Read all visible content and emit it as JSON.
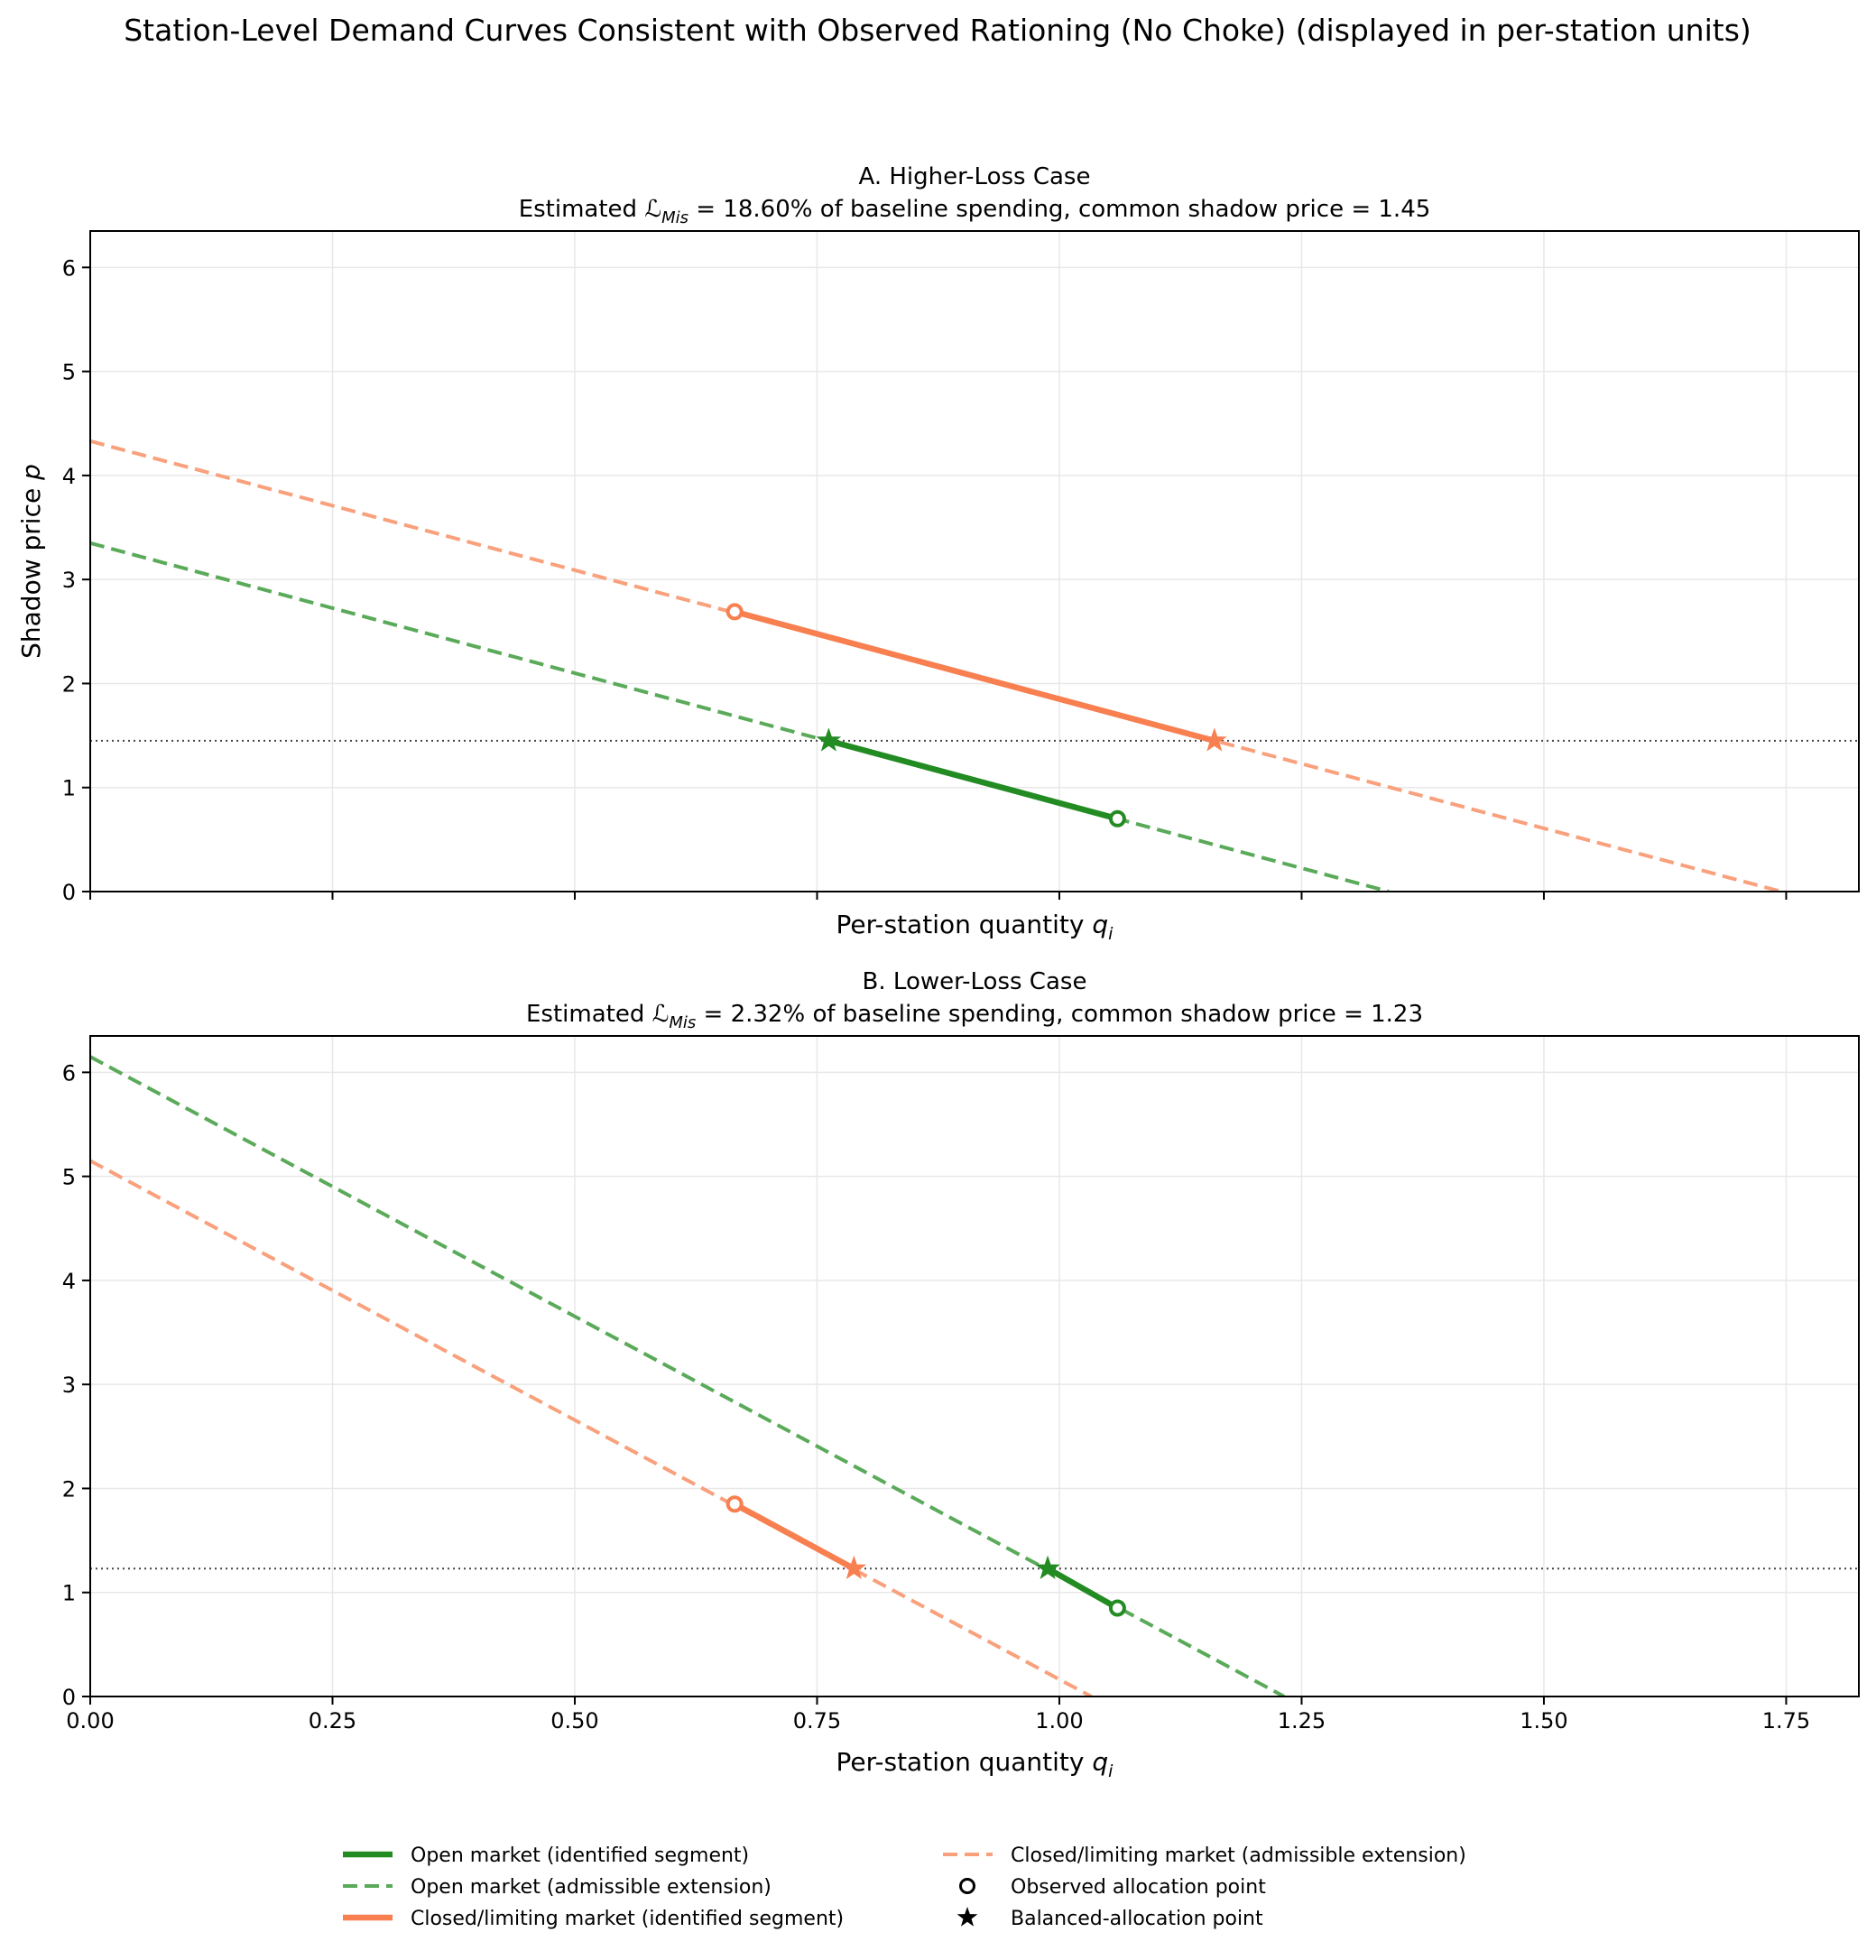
{
  "chart_data": {
    "suptitle": "Station-Level Demand Curves Consistent with Observed Rationing (No Choke) (displayed in per-station units)",
    "panels": [
      {
        "id": "A",
        "title": "A. Higher-Loss Case",
        "subtitle_prefix": "Estimated ",
        "subtitle_symbol": "ℒ",
        "subtitle_sub": "Mis",
        "subtitle_suffix": " = 18.60% of baseline spending, common shadow price = 1.45",
        "shadow_price": 1.45,
        "xlabel": "Per-station quantity",
        "xlabel_var": "q",
        "xlabel_sub": "i",
        "ylabel": "Shadow price",
        "ylabel_var": "p",
        "xlim": [
          0,
          1.825
        ],
        "ylim": [
          0,
          6.35
        ],
        "show_xticklabels": false,
        "open_market": {
          "extension": [
            [
              0,
              3.35
            ],
            [
              1.34,
              0
            ]
          ],
          "segment": [
            [
              0.762,
              1.45
            ],
            [
              1.06,
              0.7
            ]
          ],
          "observed": [
            1.06,
            0.7
          ],
          "balanced": [
            0.762,
            1.45
          ]
        },
        "closed_market": {
          "extension": [
            [
              0,
              4.33
            ],
            [
              1.745,
              0
            ]
          ],
          "segment": [
            [
              0.665,
              2.69
            ],
            [
              1.16,
              1.45
            ]
          ],
          "observed": [
            0.665,
            2.69
          ],
          "balanced": [
            1.16,
            1.45
          ]
        }
      },
      {
        "id": "B",
        "title": "B. Lower-Loss Case",
        "subtitle_prefix": "Estimated ",
        "subtitle_symbol": "ℒ",
        "subtitle_sub": "Mis",
        "subtitle_suffix": " = 2.32% of baseline spending, common shadow price = 1.23",
        "shadow_price": 1.23,
        "xlabel": "Per-station quantity",
        "xlabel_var": "q",
        "xlabel_sub": "i",
        "ylabel": "",
        "ylabel_var": "",
        "xlim": [
          0,
          1.825
        ],
        "ylim": [
          0,
          6.35
        ],
        "show_xticklabels": true,
        "open_market": {
          "extension": [
            [
              0,
              6.15
            ],
            [
              1.232,
              0
            ]
          ],
          "segment": [
            [
              0.988,
              1.23
            ],
            [
              1.06,
              0.85
            ]
          ],
          "observed": [
            1.06,
            0.85
          ],
          "balanced": [
            0.988,
            1.23
          ]
        },
        "closed_market": {
          "extension": [
            [
              0,
              5.15
            ],
            [
              1.033,
              0
            ]
          ],
          "segment": [
            [
              0.665,
              1.85
            ],
            [
              0.788,
              1.23
            ]
          ],
          "observed": [
            0.665,
            1.85
          ],
          "balanced": [
            0.788,
            1.23
          ]
        }
      }
    ],
    "xticks": [
      0,
      0.25,
      0.5,
      0.75,
      1.0,
      1.25,
      1.5,
      1.75
    ],
    "xtick_labels": [
      "0.00",
      "0.25",
      "0.50",
      "0.75",
      "1.00",
      "1.25",
      "1.50",
      "1.75"
    ],
    "yticks": [
      0,
      1,
      2,
      3,
      4,
      5,
      6
    ],
    "ytick_labels": [
      "0",
      "1",
      "2",
      "3",
      "4",
      "5",
      "6"
    ],
    "grid": true,
    "legend_position": "bottom-center",
    "legend": [
      "Open market (identified segment)",
      "Open market (admissible extension)",
      "Closed/limiting market (identified segment)",
      "Closed/limiting market (admissible extension)",
      "Observed allocation point",
      "Balanced-allocation point"
    ]
  },
  "colors": {
    "open_solid": "#228b22",
    "open_dashed": "#5aaa5a",
    "closed_solid": "#f77f50",
    "closed_dashed": "#f9a07c",
    "reference": "#444444",
    "grid": "#e8e8e8"
  }
}
